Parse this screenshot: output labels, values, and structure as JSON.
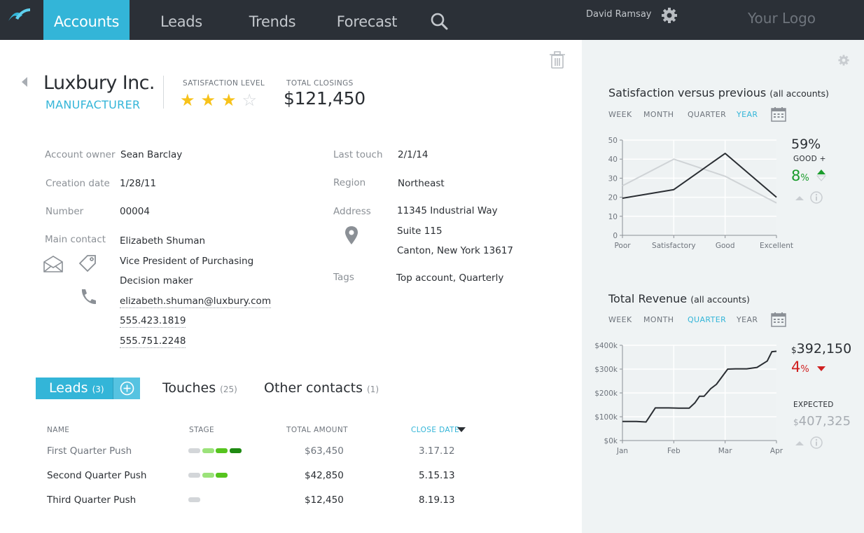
{
  "nav": {
    "tabs": [
      {
        "label": "Accounts",
        "active": true
      },
      {
        "label": "Leads",
        "active": false
      },
      {
        "label": "Trends",
        "active": false
      },
      {
        "label": "Forecast",
        "active": false
      }
    ],
    "user_name": "David Ramsay",
    "logo_text": "Your Logo",
    "icons": [
      "app-logo-icon",
      "search-icon",
      "gear-icon"
    ]
  },
  "account": {
    "name": "Luxbury Inc.",
    "type": "MANUFACTURER",
    "satisfaction_label": "SATISFACTION LEVEL",
    "satisfaction_stars": 3,
    "satisfaction_max": 4,
    "closings_label": "TOTAL CLOSINGS",
    "closings_value": "$121,450"
  },
  "fields": {
    "owner_label": "Account owner",
    "owner_value": "Sean Barclay",
    "creation_label": "Creation date",
    "creation_value": "1/28/11",
    "number_label": "Number",
    "number_value": "00004",
    "contact_label": "Main contact",
    "contact_name": "Elizabeth Shuman",
    "contact_title": "Vice President of Purchasing",
    "contact_role": "Decision maker",
    "contact_email": "elizabeth.shuman@luxbury.com",
    "contact_phone1": "555.423.1819",
    "contact_phone2": "555.751.2248",
    "touch_label": "Last touch",
    "touch_value": "2/1/14",
    "region_label": "Region",
    "region_value": "Northeast",
    "address_label": "Address",
    "address_line1": "11345 Industrial Way",
    "address_line2": "Suite 115",
    "address_line3": "Canton, New York 13617",
    "tags_label": "Tags",
    "tags_value": "Top account, Quarterly"
  },
  "tabs": {
    "leads_label": "Leads",
    "leads_count": "(3)",
    "touches_label": "Touches",
    "touches_count": "(25)",
    "contacts_label": "Other contacts",
    "contacts_count": "(1)"
  },
  "leads_table": {
    "headers": [
      "NAME",
      "STAGE",
      "TOTAL AMOUNT",
      "CLOSE DATE"
    ],
    "rows": [
      {
        "name": "First Quarter Push",
        "stage": 4,
        "amount": "$63,450",
        "close": "3.17.12"
      },
      {
        "name": "Second Quarter Push",
        "stage": 3,
        "amount": "$42,850",
        "close": "5.15.13"
      },
      {
        "name": "Third  Quarter Push",
        "stage": 1,
        "amount": "$12,450",
        "close": "8.19.13"
      }
    ],
    "stage_colors": [
      "#d3d6d9",
      "#9be27a",
      "#56c41e",
      "#1f8a12"
    ]
  },
  "satisfaction_panel": {
    "title": "Satisfaction versus previous",
    "subtitle": "(all accounts)",
    "periods": [
      "WEEK",
      "MONTH",
      "QUARTER",
      "YEAR"
    ],
    "active_period": "YEAR",
    "kpi_value": "59%",
    "kpi_label": "GOOD +",
    "change_value": "8",
    "change_unit": "%"
  },
  "revenue_panel": {
    "title": "Total Revenue",
    "subtitle": "(all accounts)",
    "periods": [
      "WEEK",
      "MONTH",
      "QUARTER",
      "YEAR"
    ],
    "active_period": "QUARTER",
    "currency": "$",
    "kpi_value": "392,150",
    "change_value": "4",
    "change_unit": "%",
    "expected_label": "EXPECTED",
    "expected_value": "407,325"
  },
  "chart_data": [
    {
      "type": "line",
      "categories": [
        "Poor",
        "Satisfactory",
        "Good",
        "Excellent"
      ],
      "ylim": [
        0,
        50
      ],
      "yticks": [
        "0",
        "10",
        "20",
        "30",
        "40",
        "50"
      ],
      "series": [
        {
          "values": [
            19.5,
            24,
            43,
            20
          ],
          "color": "#2a2e33"
        },
        {
          "values": [
            26,
            40,
            31,
            17
          ],
          "color": "#cfd3d6"
        }
      ]
    },
    {
      "type": "line",
      "categories": [
        "Jan",
        "Feb",
        "Mar",
        "Apr"
      ],
      "ylim": [
        0,
        400
      ],
      "yticks": [
        "$0k",
        "$100k",
        "$200k",
        "$300k",
        "$400k"
      ],
      "x": [
        0,
        0.27,
        0.46,
        0.64,
        0.9,
        1.1,
        1.22,
        1.3,
        1.41,
        1.5,
        1.59,
        1.72,
        1.83,
        2.05,
        2.2,
        2.42,
        2.62,
        2.82,
        2.91,
        3.0
      ],
      "series": [
        {
          "values": [
            80,
            80,
            78,
            137,
            137,
            136,
            136,
            136,
            158,
            186,
            186,
            218,
            236,
            300,
            301,
            301,
            307,
            334,
            373,
            375
          ],
          "color": "#2a2e33"
        }
      ]
    }
  ]
}
